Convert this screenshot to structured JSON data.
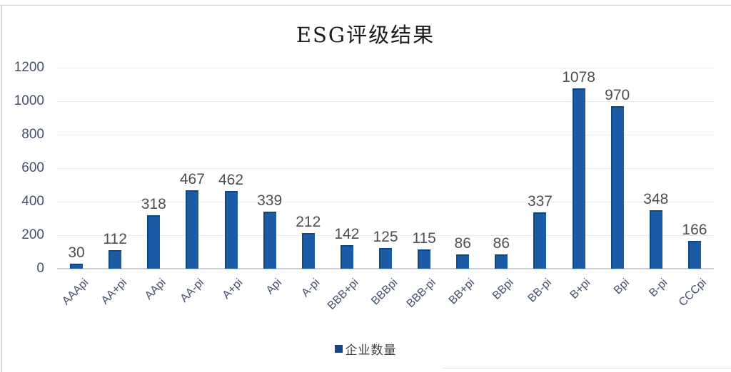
{
  "chart_data": {
    "type": "bar",
    "title": "ESG评级结果",
    "categories": [
      "AAApi",
      "AA+pi",
      "AApi",
      "AA-pi",
      "A+pi",
      "Api",
      "A-pi",
      "BBB+pi",
      "BBBpi",
      "BBB-pi",
      "BB+pi",
      "BBpi",
      "BB-pi",
      "B+pi",
      "Bpi",
      "B-pi",
      "CCCpi"
    ],
    "series": [
      {
        "name": "企业数量",
        "color": "#1b5ba6",
        "values": [
          30,
          112,
          318,
          467,
          462,
          339,
          212,
          142,
          125,
          115,
          86,
          86,
          337,
          1078,
          970,
          348,
          166
        ]
      }
    ],
    "yticks": [
      0,
      200,
      400,
      600,
      800,
      1000,
      1200
    ],
    "ylim": [
      0,
      1200
    ],
    "xlabel": "",
    "ylabel": "",
    "grid": true,
    "data_labels": true,
    "legend_position": "bottom",
    "colors": {
      "bar_fill": "#1b5ba6",
      "bar_edge": "#0f4880",
      "gridline": "#e9ebef",
      "axis_line": "#c6cfda",
      "tick_text": "#44516b",
      "value_text": "#4f4f4f",
      "legend_marker": "#17457c"
    }
  }
}
